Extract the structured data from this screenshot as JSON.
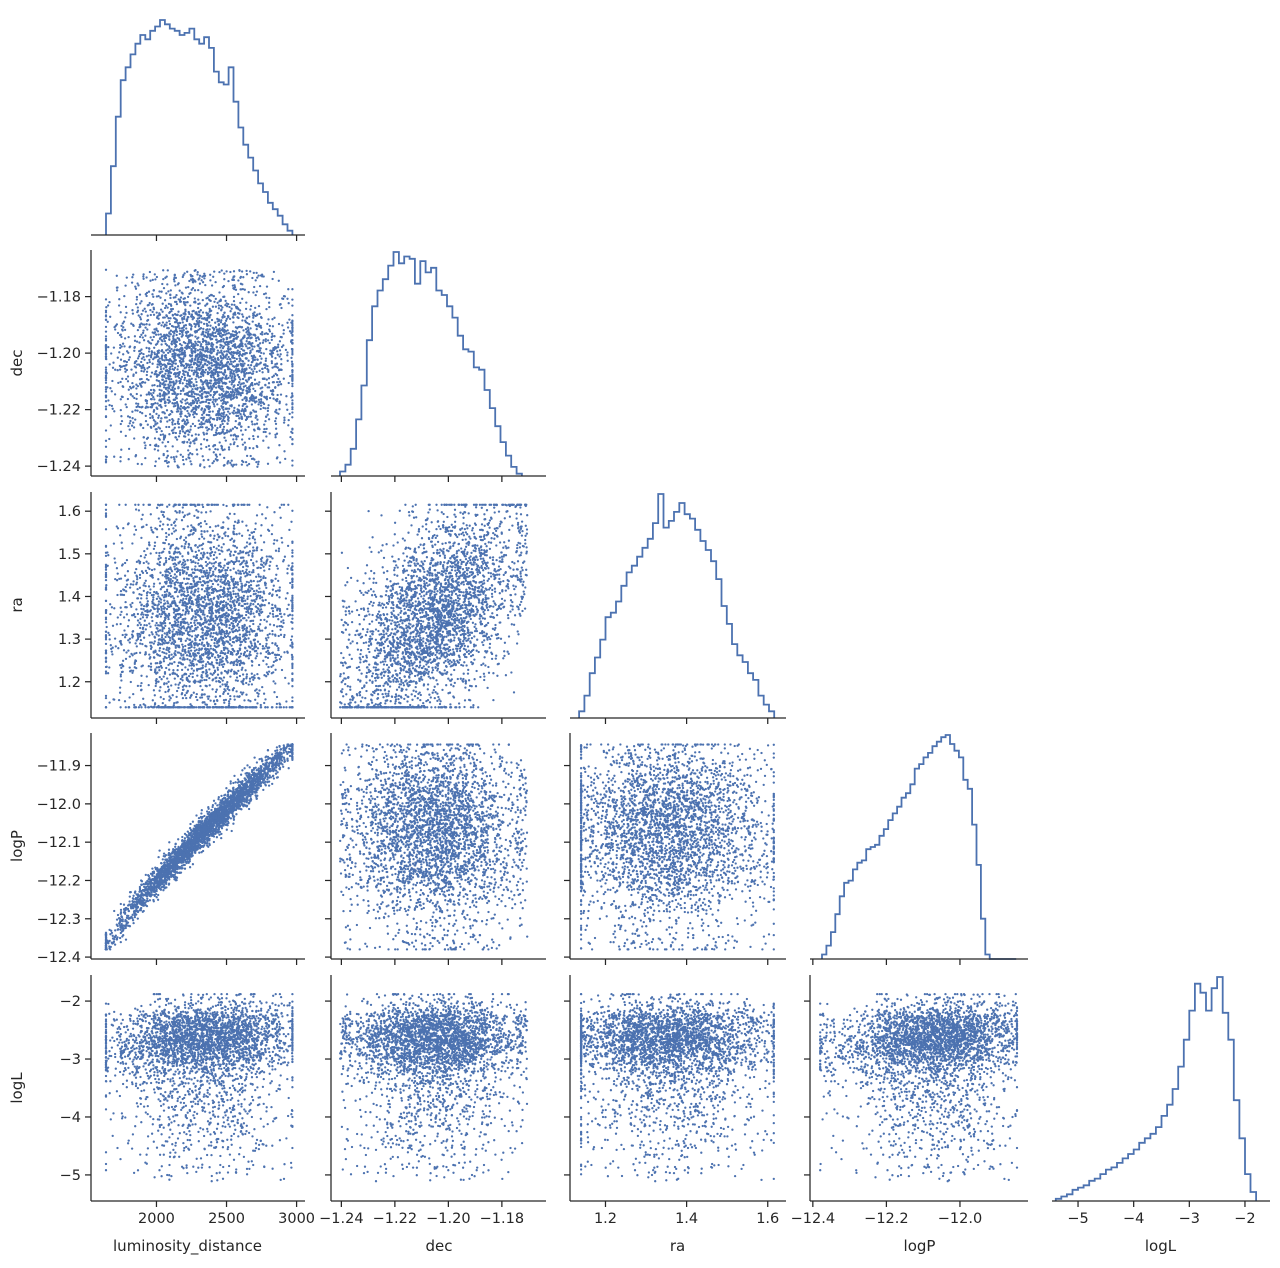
{
  "chart_data": {
    "type": "scatter",
    "layout": "corner-pairplot",
    "color": "#4c72b0",
    "axis_color": "#262626",
    "variables": [
      "luminosity_distance",
      "dec",
      "ra",
      "logP",
      "logL"
    ],
    "ranges": {
      "luminosity_distance": [
        1540,
        3060
      ],
      "dec": [
        -1.2435,
        -1.1635
      ],
      "ra": [
        1.115,
        1.645
      ],
      "logP": [
        -12.405,
        -11.815
      ],
      "logL": [
        -5.45,
        -1.55
      ]
    },
    "ticks": {
      "luminosity_distance": [
        2000,
        2500,
        3000
      ],
      "dec": [
        -1.24,
        -1.22,
        -1.2,
        -1.18
      ],
      "ra": [
        1.2,
        1.3,
        1.4,
        1.5,
        1.6
      ],
      "logP": [
        -12.4,
        -12.3,
        -12.2,
        -12.1,
        -12.0,
        -11.9
      ],
      "logL": [
        -5,
        -4,
        -3,
        -2
      ]
    },
    "tick_labels": {
      "luminosity_distance": [
        "2000",
        "2500",
        "3000"
      ],
      "dec": [
        "−1.24",
        "−1.22",
        "−1.20",
        "−1.18"
      ],
      "ra": [
        "1.2",
        "1.3",
        "1.4",
        "1.5",
        "1.6"
      ],
      "logP": [
        "−12.4",
        "−12.3",
        "−12.2",
        "−12.1",
        "−12.0",
        "−11.9"
      ],
      "logL": [
        "−5",
        "−4",
        "−3",
        "−2"
      ]
    },
    "x_tick_labels": {
      "luminosity_distance": [
        "2000",
        "2500",
        "3000"
      ],
      "dec": [
        "−1.24",
        "−1.22",
        "−1.20",
        "−1.18"
      ],
      "ra": [
        "1.2",
        "1.4",
        "1.6"
      ],
      "logP": [
        "−12.4",
        "−12.2",
        "−12.0"
      ],
      "logL": [
        "−5",
        "−4",
        "−3",
        "−2"
      ]
    },
    "y_tick_labels": {
      "dec": [
        "−1.24",
        "−1.22",
        "−1.20",
        "−1.18"
      ],
      "ra": [
        "1.2",
        "1.3",
        "1.4",
        "1.5",
        "1.6"
      ],
      "logP": [
        "−12.4",
        "−12.3",
        "−12.2",
        "−12.1",
        "−12.0",
        "−11.9"
      ],
      "logL": [
        "−5",
        "−4",
        "−3",
        "−2"
      ]
    },
    "axis_labels": {
      "luminosity_distance": "luminosity_distance",
      "dec": "dec",
      "ra": "ra",
      "logP": "logP",
      "logL": "logL"
    },
    "histograms": {
      "luminosity_distance": {
        "edges": [
          1640,
          1675,
          1710,
          1745,
          1780,
          1815,
          1850,
          1885,
          1920,
          1955,
          1990,
          2025,
          2060,
          2095,
          2130,
          2165,
          2200,
          2235,
          2270,
          2305,
          2340,
          2375,
          2410,
          2445,
          2480,
          2515,
          2550,
          2585,
          2620,
          2655,
          2690,
          2725,
          2760,
          2795,
          2830,
          2865,
          2900,
          2935,
          2970
        ],
        "counts": [
          0.1,
          0.32,
          0.55,
          0.72,
          0.78,
          0.84,
          0.89,
          0.93,
          0.91,
          0.95,
          0.97,
          1.0,
          0.98,
          0.96,
          0.95,
          0.93,
          0.94,
          0.96,
          0.91,
          0.89,
          0.92,
          0.87,
          0.76,
          0.71,
          0.7,
          0.78,
          0.62,
          0.5,
          0.42,
          0.36,
          0.3,
          0.24,
          0.2,
          0.15,
          0.12,
          0.09,
          0.05,
          0.02
        ]
      },
      "dec": {
        "edges": [
          -1.2405,
          -1.2385,
          -1.2365,
          -1.2345,
          -1.2325,
          -1.2305,
          -1.2285,
          -1.2265,
          -1.2245,
          -1.2225,
          -1.2205,
          -1.2185,
          -1.2165,
          -1.2145,
          -1.2125,
          -1.2105,
          -1.2085,
          -1.2065,
          -1.2045,
          -1.2025,
          -1.2005,
          -1.1985,
          -1.1965,
          -1.1945,
          -1.1925,
          -1.1905,
          -1.1885,
          -1.1865,
          -1.1845,
          -1.1825,
          -1.1805,
          -1.1785,
          -1.1765,
          -1.1745,
          -1.1725
        ],
        "counts": [
          0.02,
          0.05,
          0.12,
          0.25,
          0.4,
          0.6,
          0.75,
          0.82,
          0.87,
          0.93,
          0.99,
          0.94,
          0.97,
          0.96,
          0.85,
          0.95,
          0.9,
          0.92,
          0.82,
          0.8,
          0.75,
          0.7,
          0.62,
          0.56,
          0.55,
          0.48,
          0.47,
          0.38,
          0.3,
          0.22,
          0.15,
          0.09,
          0.04,
          0.01
        ]
      },
      "ra": {
        "edges": [
          1.135,
          1.148,
          1.161,
          1.174,
          1.187,
          1.2,
          1.213,
          1.226,
          1.239,
          1.252,
          1.265,
          1.278,
          1.291,
          1.304,
          1.317,
          1.33,
          1.343,
          1.356,
          1.369,
          1.382,
          1.395,
          1.408,
          1.421,
          1.434,
          1.447,
          1.46,
          1.473,
          1.486,
          1.499,
          1.512,
          1.525,
          1.538,
          1.551,
          1.564,
          1.577,
          1.59,
          1.603,
          1.616
        ],
        "counts": [
          0.03,
          0.1,
          0.2,
          0.27,
          0.35,
          0.45,
          0.47,
          0.52,
          0.59,
          0.65,
          0.68,
          0.72,
          0.76,
          0.8,
          0.87,
          1.0,
          0.85,
          0.88,
          0.92,
          0.96,
          0.91,
          0.89,
          0.84,
          0.79,
          0.75,
          0.7,
          0.62,
          0.5,
          0.42,
          0.33,
          0.28,
          0.25,
          0.2,
          0.17,
          0.1,
          0.06,
          0.03
        ]
      },
      "logP": {
        "edges": [
          -12.375,
          -12.363,
          -12.351,
          -12.339,
          -12.327,
          -12.315,
          -12.303,
          -12.291,
          -12.279,
          -12.267,
          -12.255,
          -12.243,
          -12.231,
          -12.219,
          -12.207,
          -12.195,
          -12.183,
          -12.171,
          -12.159,
          -12.147,
          -12.135,
          -12.123,
          -12.111,
          -12.099,
          -12.087,
          -12.075,
          -12.063,
          -12.051,
          -12.039,
          -12.027,
          -12.015,
          -12.003,
          -11.991,
          -11.979,
          -11.967,
          -11.955,
          -11.943,
          -11.931,
          -11.919,
          -11.907,
          -11.895,
          -11.883,
          -11.871,
          -11.859,
          -11.847
        ],
        "counts": [
          0.02,
          0.06,
          0.12,
          0.2,
          0.28,
          0.34,
          0.35,
          0.4,
          0.43,
          0.44,
          0.49,
          0.5,
          0.51,
          0.55,
          0.58,
          0.62,
          0.65,
          0.68,
          0.72,
          0.74,
          0.78,
          0.85,
          0.87,
          0.9,
          0.92,
          0.95,
          0.97,
          0.99,
          1.0,
          0.96,
          0.93,
          0.9,
          0.8,
          0.76,
          0.6,
          0.42,
          0.18,
          0.02,
          0.0,
          0.0,
          0.0,
          0.0,
          0.0,
          0.0
        ]
      },
      "logL": {
        "edges": [
          -5.4,
          -5.3,
          -5.2,
          -5.1,
          -5.0,
          -4.9,
          -4.8,
          -4.7,
          -4.6,
          -4.5,
          -4.4,
          -4.3,
          -4.2,
          -4.1,
          -4.0,
          -3.9,
          -3.8,
          -3.7,
          -3.6,
          -3.5,
          -3.4,
          -3.3,
          -3.2,
          -3.1,
          -3.0,
          -2.9,
          -2.8,
          -2.7,
          -2.6,
          -2.5,
          -2.4,
          -2.3,
          -2.2,
          -2.1,
          -2.0,
          -1.9,
          -1.8
        ],
        "counts": [
          0.01,
          0.02,
          0.03,
          0.05,
          0.06,
          0.07,
          0.09,
          0.1,
          0.12,
          0.14,
          0.15,
          0.17,
          0.19,
          0.21,
          0.23,
          0.26,
          0.28,
          0.3,
          0.33,
          0.38,
          0.43,
          0.5,
          0.6,
          0.72,
          0.85,
          0.97,
          0.93,
          0.85,
          0.95,
          1.0,
          0.84,
          0.72,
          0.45,
          0.28,
          0.12,
          0.04
        ]
      }
    }
  }
}
